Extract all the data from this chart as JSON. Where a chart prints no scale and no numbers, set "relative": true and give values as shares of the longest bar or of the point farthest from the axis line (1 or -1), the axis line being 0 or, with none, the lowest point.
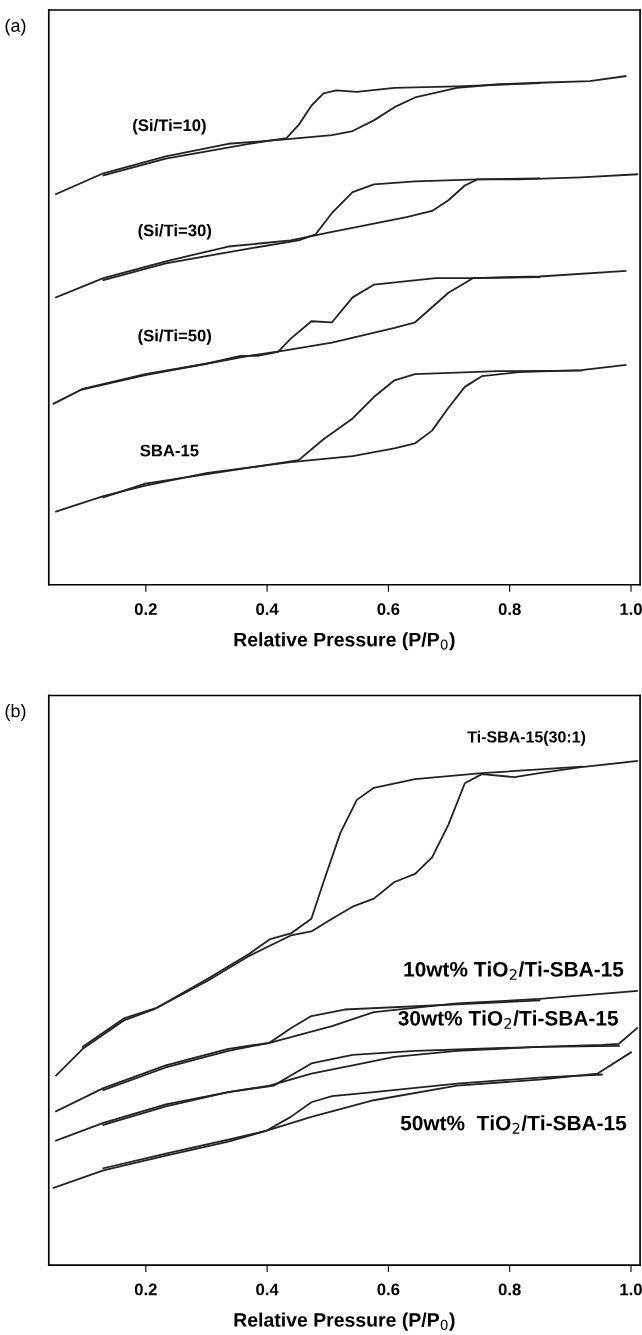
{
  "chart_data": [
    {
      "type": "line",
      "title": "(a)",
      "xlabel": "Relative Pressure (P/P$_{0}$)",
      "relative": true,
      "xlim": [
        0.04,
        1.015
      ],
      "xticks": [
        0.2,
        0.4,
        0.6,
        0.8,
        {
          "value": 1.0,
          "label": "1.0"
        }
      ],
      "series": [
        {
          "name": "(Si/Ti=10)",
          "color": "#222222",
          "x": [
            0.052,
            0.13,
            0.233,
            0.336,
            0.425,
            0.507,
            0.541,
            0.576,
            0.61,
            0.644,
            0.713,
            0.781,
            0.849,
            0.932,
            0.991
          ],
          "values": [
            0.768,
            0.809,
            0.842,
            0.867,
            0.875,
            0.884,
            0.892,
            0.913,
            0.939,
            0.958,
            0.977,
            0.984,
            0.987,
            0.99,
            1.0
          ]
        },
        {
          "color": "#222222",
          "x": [
            0.13,
            0.233,
            0.37,
            0.432,
            0.452,
            0.473,
            0.493,
            0.514,
            0.548,
            0.61,
            0.713,
            0.849
          ],
          "values": [
            0.805,
            0.838,
            0.867,
            0.878,
            0.904,
            0.942,
            0.966,
            0.972,
            0.969,
            0.977,
            0.98,
            0.986
          ]
        },
        {
          "name": "(Si/Ti=30)",
          "color": "#222222",
          "x": [
            0.052,
            0.13,
            0.233,
            0.336,
            0.439,
            0.507,
            0.576,
            0.63,
            0.672,
            0.699,
            0.726,
            0.747,
            0.815,
            0.918,
            1.01
          ],
          "values": [
            0.565,
            0.603,
            0.636,
            0.665,
            0.677,
            0.694,
            0.71,
            0.723,
            0.735,
            0.756,
            0.785,
            0.797,
            0.797,
            0.801,
            0.807
          ]
        },
        {
          "color": "#222222",
          "x": [
            0.13,
            0.233,
            0.37,
            0.452,
            0.48,
            0.507,
            0.541,
            0.576,
            0.644,
            0.747,
            0.849
          ],
          "values": [
            0.599,
            0.632,
            0.661,
            0.677,
            0.689,
            0.731,
            0.772,
            0.787,
            0.793,
            0.797,
            0.799
          ]
        },
        {
          "name": "(Si/Ti=50)",
          "color": "#222222",
          "x": [
            0.048,
            0.096,
            0.199,
            0.302,
            0.37,
            0.425,
            0.507,
            0.61,
            0.644,
            0.699,
            0.74,
            0.849,
            0.991
          ],
          "values": [
            0.356,
            0.385,
            0.414,
            0.435,
            0.45,
            0.46,
            0.476,
            0.505,
            0.516,
            0.574,
            0.603,
            0.606,
            0.617
          ]
        },
        {
          "color": "#222222",
          "x": [
            0.096,
            0.199,
            0.302,
            0.356,
            0.384,
            0.418,
            0.439,
            0.473,
            0.507,
            0.541,
            0.576,
            0.678,
            0.74,
            0.849
          ],
          "values": [
            0.384,
            0.412,
            0.435,
            0.45,
            0.45,
            0.458,
            0.484,
            0.518,
            0.516,
            0.565,
            0.59,
            0.603,
            0.603,
            0.605
          ]
        },
        {
          "name": "SBA-15",
          "color": "#222222",
          "x": [
            0.052,
            0.13,
            0.199,
            0.302,
            0.439,
            0.541,
            0.61,
            0.644,
            0.672,
            0.699,
            0.726,
            0.754,
            0.815,
            0.918,
            0.991
          ],
          "values": [
            0.144,
            0.174,
            0.195,
            0.22,
            0.241,
            0.253,
            0.268,
            0.278,
            0.303,
            0.348,
            0.389,
            0.41,
            0.418,
            0.422,
            0.432
          ]
        },
        {
          "color": "#222222",
          "x": [
            0.13,
            0.199,
            0.336,
            0.404,
            0.452,
            0.493,
            0.541,
            0.576,
            0.61,
            0.644,
            0.781,
            0.918
          ],
          "values": [
            0.172,
            0.199,
            0.224,
            0.236,
            0.245,
            0.286,
            0.327,
            0.369,
            0.402,
            0.414,
            0.42,
            0.421
          ]
        }
      ]
    },
    {
      "type": "line",
      "title": "(b)",
      "xlabel": "Relative Pressure (P/P$_{0}$)",
      "relative": true,
      "xlim": [
        0.04,
        1.015
      ],
      "xticks": [
        0.2,
        0.4,
        0.6,
        0.8,
        {
          "value": 1.0,
          "label": "1.0"
        }
      ],
      "series": [
        {
          "name": "Ti-SBA-15(30:1)",
          "color": "#222222",
          "x": [
            0.052,
            0.096,
            0.165,
            0.213,
            0.302,
            0.37,
            0.439,
            0.473,
            0.507,
            0.541,
            0.576,
            0.61,
            0.644,
            0.672,
            0.699,
            0.726,
            0.754,
            0.808,
            0.849,
            0.918,
            1.01
          ],
          "values": [
            0.376,
            0.429,
            0.486,
            0.507,
            0.564,
            0.613,
            0.654,
            0.662,
            0.687,
            0.711,
            0.727,
            0.76,
            0.776,
            0.809,
            0.874,
            0.956,
            0.974,
            0.968,
            0.976,
            0.988,
            1.0
          ]
        },
        {
          "color": "#222222",
          "x": [
            0.096,
            0.165,
            0.219,
            0.302,
            0.37,
            0.404,
            0.439,
            0.473,
            0.493,
            0.521,
            0.548,
            0.576,
            0.644,
            0.754,
            0.918
          ],
          "values": [
            0.433,
            0.49,
            0.511,
            0.568,
            0.617,
            0.646,
            0.658,
            0.687,
            0.76,
            0.858,
            0.923,
            0.947,
            0.964,
            0.976,
            0.989
          ]
        },
        {
          "name": "10wt% TiO$_{2}$/Ti-SBA-15",
          "color": "#222222",
          "x": [
            0.052,
            0.13,
            0.233,
            0.336,
            0.404,
            0.507,
            0.576,
            0.713,
            0.849,
            1.01
          ],
          "values": [
            0.305,
            0.351,
            0.396,
            0.429,
            0.441,
            0.474,
            0.502,
            0.519,
            0.528,
            0.544
          ]
        },
        {
          "color": "#222222",
          "x": [
            0.13,
            0.233,
            0.336,
            0.404,
            0.439,
            0.473,
            0.528,
            0.849
          ],
          "values": [
            0.347,
            0.392,
            0.425,
            0.441,
            0.47,
            0.494,
            0.507,
            0.525
          ]
        },
        {
          "name": "30wt% TiO$_{2}$/Ti-SBA-15",
          "color": "#222222",
          "x": [
            0.052,
            0.13,
            0.233,
            0.336,
            0.404,
            0.473,
            0.541,
            0.61,
            0.713,
            0.849,
            0.952,
            0.98,
            1.01
          ],
          "values": [
            0.247,
            0.282,
            0.319,
            0.343,
            0.356,
            0.38,
            0.396,
            0.413,
            0.425,
            0.433,
            0.437,
            0.439,
            0.47
          ]
        },
        {
          "color": "#222222",
          "x": [
            0.13,
            0.233,
            0.336,
            0.411,
            0.439,
            0.473,
            0.541,
            0.644,
            0.849,
            0.98
          ],
          "values": [
            0.278,
            0.315,
            0.343,
            0.356,
            0.376,
            0.4,
            0.417,
            0.425,
            0.433,
            0.435
          ]
        },
        {
          "name": "50wt%  TiO$_{2}$/Ti-SBA-15",
          "color": "#222222",
          "x": [
            0.048,
            0.13,
            0.233,
            0.336,
            0.398,
            0.473,
            0.576,
            0.713,
            0.849,
            0.945,
            1.0
          ],
          "values": [
            0.153,
            0.188,
            0.217,
            0.245,
            0.266,
            0.294,
            0.327,
            0.356,
            0.368,
            0.38,
            0.422
          ]
        },
        {
          "color": "#222222",
          "x": [
            0.13,
            0.233,
            0.336,
            0.398,
            0.439,
            0.473,
            0.507,
            0.576,
            0.713,
            0.849,
            0.952
          ],
          "values": [
            0.192,
            0.221,
            0.249,
            0.266,
            0.294,
            0.323,
            0.335,
            0.343,
            0.36,
            0.372,
            0.378
          ]
        }
      ]
    }
  ]
}
